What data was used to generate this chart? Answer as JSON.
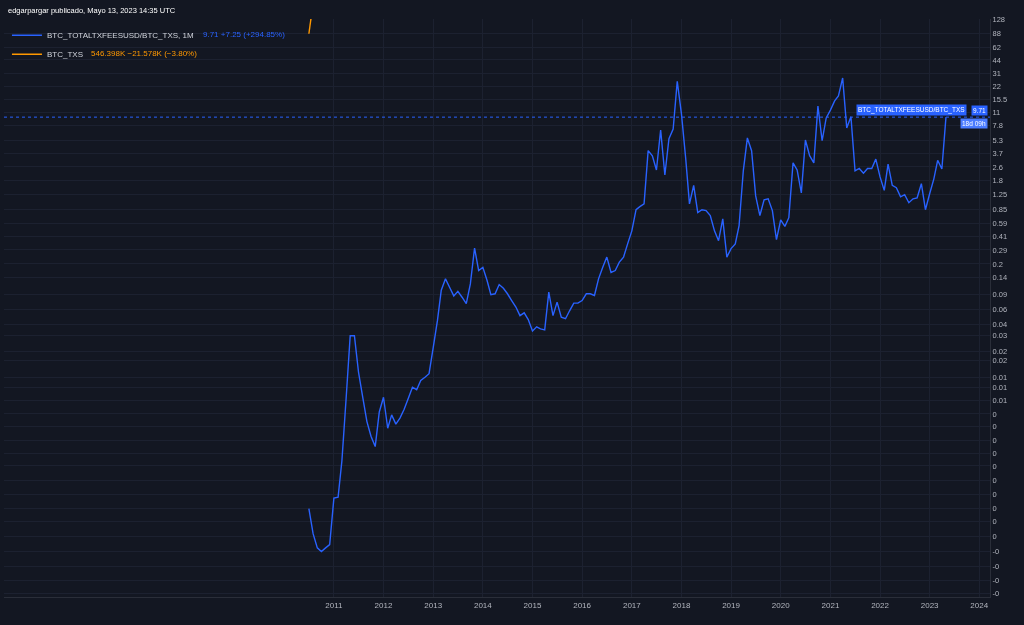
{
  "chart_data": {
    "type": "line",
    "annotations": [
      "edgarpargar publicado, Mayo 13, 2023 14:35 UTC",
      "9.71 +7.25 (+294.85%)",
      "546.398K −21.578K (−3.80%)",
      {
        "text": "BTC_TOTALTXFEESUSD/BTC_TXS",
        "y": 9.71
      },
      {
        "text": "18d 09h",
        "y": 9.71
      }
    ],
    "x": [
      "2010-07",
      "2010-08",
      "2010-09",
      "2010-10",
      "2010-11",
      "2010-12",
      "2011-01",
      "2011-02",
      "2011-03",
      "2011-04",
      "2011-05",
      "2011-06",
      "2011-07",
      "2011-08",
      "2011-09",
      "2011-10",
      "2011-11",
      "2011-12",
      "2012-01",
      "2012-02",
      "2012-03",
      "2012-04",
      "2012-05",
      "2012-06",
      "2012-07",
      "2012-08",
      "2012-09",
      "2012-10",
      "2012-11",
      "2012-12",
      "2013-01",
      "2013-02",
      "2013-03",
      "2013-04",
      "2013-05",
      "2013-06",
      "2013-07",
      "2013-08",
      "2013-09",
      "2013-10",
      "2013-11",
      "2013-12",
      "2014-01",
      "2014-02",
      "2014-03",
      "2014-04",
      "2014-05",
      "2014-06",
      "2014-07",
      "2014-08",
      "2014-09",
      "2014-10",
      "2014-11",
      "2014-12",
      "2015-01",
      "2015-02",
      "2015-03",
      "2015-04",
      "2015-05",
      "2015-06",
      "2015-07",
      "2015-08",
      "2015-09",
      "2015-10",
      "2015-11",
      "2015-12",
      "2016-01",
      "2016-02",
      "2016-03",
      "2016-04",
      "2016-05",
      "2016-06",
      "2016-07",
      "2016-08",
      "2016-09",
      "2016-10",
      "2016-11",
      "2016-12",
      "2017-01",
      "2017-02",
      "2017-03",
      "2017-04",
      "2017-05",
      "2017-06",
      "2017-07",
      "2017-08",
      "2017-09",
      "2017-10",
      "2017-11",
      "2017-12",
      "2018-01",
      "2018-02",
      "2018-03",
      "2018-04",
      "2018-05",
      "2018-06",
      "2018-07",
      "2018-08",
      "2018-09",
      "2018-10",
      "2018-11",
      "2018-12",
      "2019-01",
      "2019-02",
      "2019-03",
      "2019-04",
      "2019-05",
      "2019-06",
      "2019-07",
      "2019-08",
      "2019-09",
      "2019-10",
      "2019-11",
      "2019-12",
      "2020-01",
      "2020-02",
      "2020-03",
      "2020-04",
      "2020-05",
      "2020-06",
      "2020-07",
      "2020-08",
      "2020-09",
      "2020-10",
      "2020-11",
      "2020-12",
      "2021-01",
      "2021-02",
      "2021-03",
      "2021-04",
      "2021-05",
      "2021-06",
      "2021-07",
      "2021-08",
      "2021-09",
      "2021-10",
      "2021-11",
      "2021-12",
      "2022-01",
      "2022-02",
      "2022-03",
      "2022-04",
      "2022-05",
      "2022-06",
      "2022-07",
      "2022-08",
      "2022-09",
      "2022-10",
      "2022-11",
      "2022-12",
      "2023-01",
      "2023-02",
      "2023-03",
      "2023-04",
      "2023-05"
    ],
    "series": [
      {
        "name": "BTC_TOTALTXFEESUSD/BTC_TXS, 1M",
        "color": "#2962ff",
        "values": [
          0.00031,
          0.00016,
          0.00011,
          0.0001,
          0.00011,
          0.00012,
          0.00041,
          0.00042,
          0.0011,
          0.0057,
          0.03,
          0.03,
          0.0115,
          0.0059,
          0.0031,
          0.0021,
          0.0016,
          0.004,
          0.0059,
          0.0026,
          0.0037,
          0.0029,
          0.0034,
          0.0043,
          0.0057,
          0.0077,
          0.0072,
          0.0092,
          0.01,
          0.011,
          0.022,
          0.045,
          0.1,
          0.135,
          0.108,
          0.086,
          0.097,
          0.083,
          0.07,
          0.118,
          0.305,
          0.168,
          0.183,
          0.129,
          0.089,
          0.091,
          0.116,
          0.105,
          0.091,
          0.076,
          0.064,
          0.051,
          0.055,
          0.046,
          0.034,
          0.038,
          0.036,
          0.035,
          0.095,
          0.051,
          0.073,
          0.049,
          0.047,
          0.058,
          0.071,
          0.071,
          0.076,
          0.091,
          0.091,
          0.087,
          0.135,
          0.183,
          0.24,
          0.16,
          0.168,
          0.21,
          0.24,
          0.34,
          0.48,
          0.84,
          0.91,
          0.98,
          4.0,
          3.5,
          2.4,
          6.9,
          2.1,
          5.5,
          7.1,
          25,
          10.6,
          3.3,
          0.98,
          1.6,
          0.78,
          0.84,
          0.82,
          0.72,
          0.48,
          0.37,
          0.66,
          0.24,
          0.3,
          0.34,
          0.55,
          2.35,
          5.6,
          4.0,
          1.21,
          0.72,
          1.09,
          1.12,
          0.82,
          0.38,
          0.64,
          0.54,
          0.68,
          2.9,
          2.4,
          1.31,
          5.3,
          3.5,
          2.9,
          13,
          5.2,
          9.5,
          11.7,
          14.9,
          17,
          27.3,
          7.3,
          9.8,
          2.35,
          2.5,
          2.2,
          2.5,
          2.5,
          3.2,
          2.0,
          1.4,
          2.8,
          1.6,
          1.5,
          1.18,
          1.25,
          1.01,
          1.12,
          1.15,
          1.67,
          0.84,
          1.28,
          1.9,
          3.1,
          2.46,
          9.71
        ]
      },
      {
        "name": "BTC_TXS",
        "color": "#ff9800",
        "x": [
          "2010-07",
          "2010-07-16"
        ],
        "values": [
          88,
          130
        ]
      }
    ],
    "log": true,
    "xlim": [
      "2004-05-10",
      "2024-03-20"
    ],
    "xticks": [
      "2011",
      "2012",
      "2013",
      "2014",
      "2015",
      "2016",
      "2017",
      "2018",
      "2019",
      "2020",
      "2021",
      "2022",
      "2023",
      "2024"
    ],
    "ylim": [
      3e-05,
      130
    ],
    "yticks": [
      128,
      88,
      62,
      44,
      31,
      22,
      15.5,
      11,
      7.8,
      5.3,
      3.7,
      2.6,
      1.8,
      1.25,
      0.85,
      0.59,
      0.41,
      0.29,
      0.2,
      0.14,
      0.09,
      0.06,
      0.04,
      0.03,
      0.02,
      {
        "value": 0.0157,
        "label": "0.02"
      },
      0.01,
      {
        "value": 0.0076,
        "label": "0.01"
      },
      {
        "value": 0.0054,
        "label": "0.01"
      },
      {
        "value": 0.0038,
        "label": "0"
      },
      {
        "value": 0.0027,
        "label": "0"
      },
      {
        "value": 0.0019,
        "label": "0"
      },
      {
        "value": 0.00135,
        "label": "0"
      },
      {
        "value": 0.00096,
        "label": "0"
      },
      {
        "value": 0.00066,
        "label": "0"
      },
      {
        "value": 0.00045,
        "label": "0"
      },
      {
        "value": 0.00031,
        "label": "0"
      },
      {
        "value": 0.00022,
        "label": "0"
      },
      {
        "value": 0.00015,
        "label": "0"
      },
      {
        "value": 0.0001,
        "label": "-0"
      },
      {
        "value": 6.7e-05,
        "label": "-0"
      },
      {
        "value": 4.6e-05,
        "label": "-0"
      },
      {
        "value": 3.3e-05,
        "label": "-0"
      }
    ],
    "ref_lines": [
      {
        "axis": "y",
        "value": 9.71,
        "label": "9.71",
        "color": "#2962ff",
        "line_style": "dotted"
      }
    ],
    "grid": true,
    "legend": "top left"
  }
}
